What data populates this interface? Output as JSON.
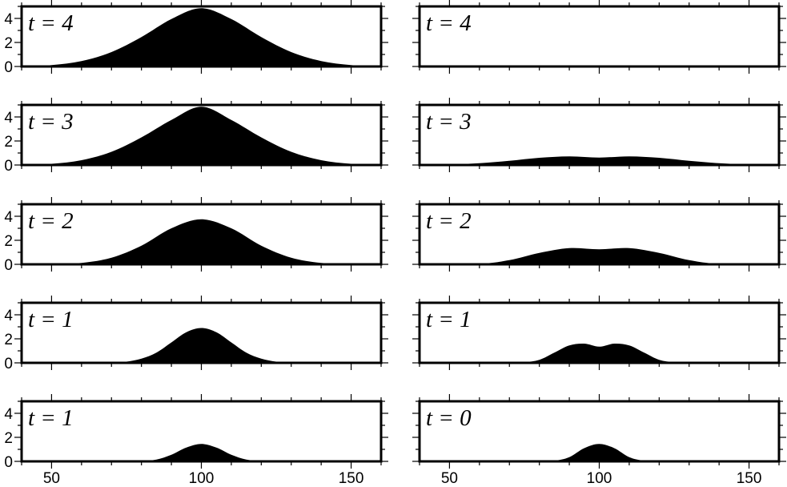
{
  "colors": {
    "fill": "#000000",
    "frame": "#000000",
    "background": "#ffffff"
  },
  "chart_data": {
    "type": "area",
    "x_ticks": [
      50,
      100,
      150
    ],
    "y_ticks": [
      0,
      2,
      4
    ],
    "xlim": [
      40,
      160
    ],
    "ylim": [
      0,
      5
    ],
    "grid": false,
    "panels": [
      {
        "column": "left",
        "row": 0,
        "label": "t = 4",
        "x": [
          40,
          50,
          60,
          70,
          80,
          90,
          100,
          110,
          120,
          130,
          140,
          150,
          160
        ],
        "values": [
          0.02,
          0.12,
          0.45,
          1.2,
          2.45,
          3.95,
          4.85,
          3.95,
          2.45,
          1.2,
          0.45,
          0.12,
          0.02
        ]
      },
      {
        "column": "left",
        "row": 1,
        "label": "t = 3",
        "x": [
          40,
          50,
          60,
          70,
          80,
          90,
          100,
          110,
          120,
          130,
          140,
          150,
          160
        ],
        "values": [
          0.01,
          0.1,
          0.4,
          1.1,
          2.3,
          3.75,
          4.85,
          3.75,
          2.3,
          1.1,
          0.4,
          0.1,
          0.01
        ]
      },
      {
        "column": "left",
        "row": 2,
        "label": "t = 2",
        "x": [
          40,
          50,
          60,
          70,
          80,
          90,
          100,
          110,
          120,
          130,
          140,
          150,
          160
        ],
        "values": [
          0,
          0.02,
          0.12,
          0.55,
          1.55,
          3.0,
          3.75,
          3.0,
          1.55,
          0.55,
          0.12,
          0.02,
          0
        ]
      },
      {
        "column": "left",
        "row": 3,
        "label": "t = 1",
        "x": [
          40,
          60,
          70,
          75,
          80,
          85,
          90,
          95,
          100,
          105,
          110,
          115,
          120,
          125,
          130,
          140,
          160
        ],
        "values": [
          0,
          0,
          0.02,
          0.1,
          0.35,
          0.85,
          1.7,
          2.55,
          2.9,
          2.55,
          1.7,
          0.85,
          0.35,
          0.1,
          0.02,
          0,
          0
        ]
      },
      {
        "column": "left",
        "row": 4,
        "label": "t = 1",
        "x": [
          40,
          75,
          80,
          85,
          90,
          95,
          100,
          105,
          110,
          115,
          120,
          125,
          160
        ],
        "values": [
          0,
          0,
          0.03,
          0.15,
          0.55,
          1.15,
          1.45,
          1.15,
          0.55,
          0.15,
          0.03,
          0,
          0
        ]
      },
      {
        "column": "right",
        "row": 0,
        "label": "t = 4",
        "x": [
          40,
          60,
          80,
          90,
          100,
          110,
          120,
          140,
          160
        ],
        "values": [
          0,
          0.01,
          0.04,
          0.08,
          0.06,
          0.08,
          0.04,
          0.01,
          0
        ]
      },
      {
        "column": "right",
        "row": 1,
        "label": "t = 3",
        "x": [
          40,
          50,
          60,
          70,
          80,
          90,
          100,
          110,
          120,
          130,
          140,
          150,
          160
        ],
        "values": [
          0,
          0.04,
          0.15,
          0.35,
          0.6,
          0.72,
          0.62,
          0.72,
          0.6,
          0.35,
          0.15,
          0.04,
          0
        ]
      },
      {
        "column": "right",
        "row": 2,
        "label": "t = 2",
        "x": [
          40,
          60,
          70,
          80,
          90,
          100,
          110,
          120,
          130,
          140,
          160
        ],
        "values": [
          0,
          0.05,
          0.35,
          0.95,
          1.35,
          1.25,
          1.35,
          0.95,
          0.35,
          0.05,
          0
        ]
      },
      {
        "column": "right",
        "row": 3,
        "label": "t = 1",
        "x": [
          40,
          70,
          75,
          80,
          85,
          90,
          95,
          100,
          105,
          110,
          115,
          120,
          125,
          130,
          160
        ],
        "values": [
          0,
          0,
          0.05,
          0.25,
          0.85,
          1.45,
          1.6,
          1.35,
          1.6,
          1.45,
          0.85,
          0.25,
          0.05,
          0,
          0
        ]
      },
      {
        "column": "right",
        "row": 4,
        "label": "t = 0",
        "x": [
          40,
          80,
          85,
          90,
          95,
          100,
          105,
          110,
          115,
          120,
          160
        ],
        "values": [
          0,
          0,
          0.05,
          0.35,
          1.1,
          1.45,
          1.1,
          0.35,
          0.05,
          0,
          0
        ]
      }
    ]
  }
}
